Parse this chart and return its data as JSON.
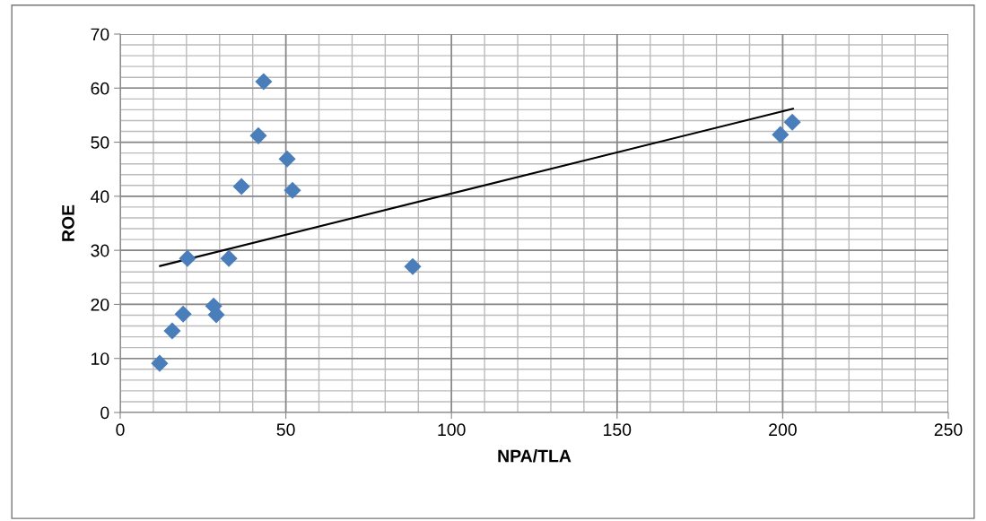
{
  "chart_data": {
    "type": "scatter",
    "xlabel": "NPA/TLA",
    "ylabel": "ROE",
    "xlim": [
      0,
      250
    ],
    "xticks": [
      0,
      50,
      100,
      150,
      200,
      250
    ],
    "ylim": [
      0,
      70
    ],
    "yticks": [
      0,
      10,
      20,
      30,
      40,
      50,
      60,
      70
    ],
    "grid": true,
    "legend": false,
    "series": [
      {
        "marker": "diamond",
        "color": "#4a7ebb",
        "x": [
          11.9,
          15.7,
          19.0,
          20.3,
          28.2,
          29.0,
          32.8,
          36.6,
          41.7,
          43.3,
          50.4,
          52.0,
          88.3,
          199.3,
          202.9
        ],
        "values": [
          9.1,
          15.1,
          18.2,
          28.5,
          19.7,
          18.1,
          28.5,
          41.8,
          51.2,
          61.2,
          46.9,
          41.1,
          27.0,
          51.4,
          53.7
        ]
      },
      {
        "type": "line",
        "marker": "none",
        "color": "#000000",
        "x": [
          12.0,
          203.1
        ],
        "values": [
          27.1,
          56.2
        ]
      }
    ]
  }
}
